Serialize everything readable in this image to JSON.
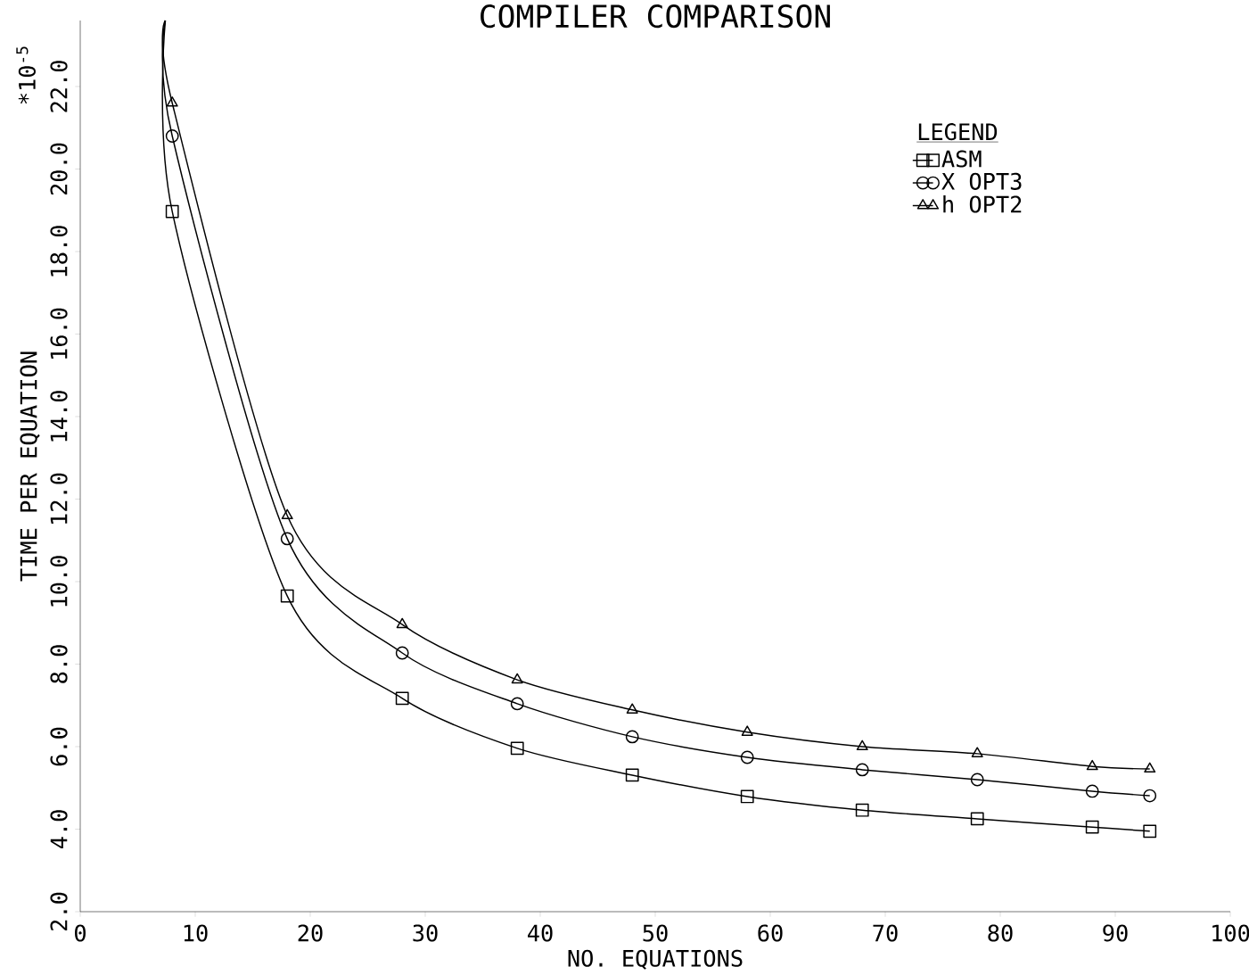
{
  "chart_data": {
    "type": "line",
    "title": "COMPILER COMPARISON",
    "xlabel": "NO. EQUATIONS",
    "ylabel": "TIME PER EQUATION",
    "annotations": [
      "*10$^{-5}$"
    ],
    "legend_title": "LEGEND",
    "legend": "top right",
    "grid": false,
    "line_style": "solid",
    "x": [
      7.4,
      8,
      18,
      28,
      38,
      48,
      58,
      68,
      78,
      88,
      93
    ],
    "series": [
      {
        "name": "ASM",
        "color": "#000000",
        "marker": "square",
        "values": [
          23.6,
          18.97,
          9.65,
          7.17,
          5.96,
          5.31,
          4.79,
          4.46,
          4.25,
          4.05,
          3.95
        ]
      },
      {
        "name": "X OPT3",
        "color": "#000000",
        "marker": "circle",
        "values": [
          23.6,
          20.8,
          11.04,
          8.27,
          7.04,
          6.24,
          5.74,
          5.44,
          5.2,
          4.92,
          4.81
        ]
      },
      {
        "name": "h OPT2",
        "color": "#000000",
        "marker": "triangle",
        "values": [
          23.6,
          21.6,
          11.6,
          8.96,
          7.62,
          6.89,
          6.35,
          6.0,
          5.83,
          5.52,
          5.46
        ]
      }
    ],
    "xlim": [
      0,
      100
    ],
    "xticks": [
      0,
      10,
      20,
      30,
      40,
      50,
      60,
      70,
      80,
      90,
      100
    ],
    "ylim": [
      2,
      23.6
    ],
    "yticks": [
      {
        "value": 2,
        "label": "2.0"
      },
      {
        "value": 4,
        "label": "4.0"
      },
      {
        "value": 6,
        "label": "6.0"
      },
      {
        "value": 8,
        "label": "8.0"
      },
      {
        "value": 10,
        "label": "10.0"
      },
      {
        "value": 12,
        "label": "12.0"
      },
      {
        "value": 14,
        "label": "14.0"
      },
      {
        "value": 16,
        "label": "16.0"
      },
      {
        "value": 18,
        "label": "18.0"
      },
      {
        "value": 20,
        "label": "20.0"
      },
      {
        "value": 22,
        "label": "22.0"
      }
    ]
  }
}
